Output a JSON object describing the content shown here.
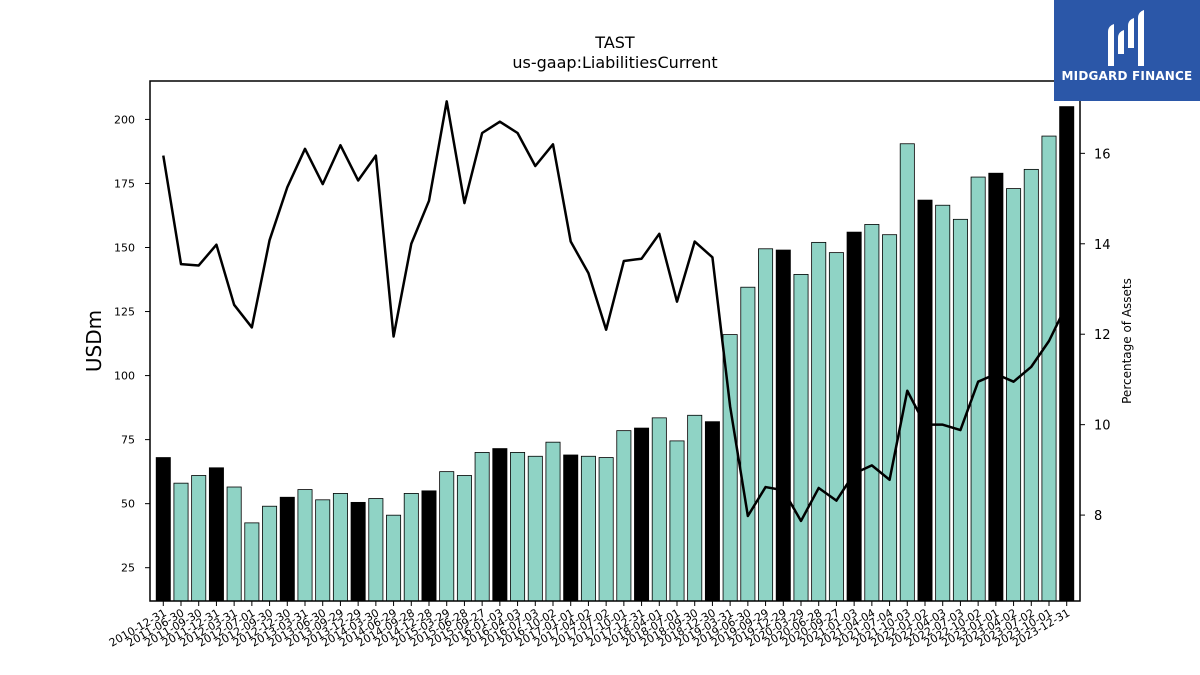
{
  "chart_data": {
    "type": "bar",
    "title": "TAST",
    "subtitle": "us-gaap:LiabilitiesCurrent",
    "ylabel": "USDm",
    "y2label": "Percentage of Assets",
    "ylim": [
      12,
      215
    ],
    "y2lim": [
      6.1,
      17.6
    ],
    "yticks": [
      25,
      50,
      75,
      100,
      125,
      150,
      175,
      200
    ],
    "y2ticks": [
      8,
      10,
      12,
      14,
      16
    ],
    "bar_colors": {
      "annual": "#000000",
      "quarter": "#8fd3c5"
    },
    "line_color": "#000000",
    "grid": false,
    "categories": [
      "2010-12-31",
      "2011-06-30",
      "2011-09-30",
      "2011-12-31",
      "2012-03-31",
      "2012-07-01",
      "2012-09-30",
      "2012-12-30",
      "2013-03-31",
      "2013-06-30",
      "2013-09-29",
      "2013-12-29",
      "2014-03-30",
      "2014-06-29",
      "2014-09-28",
      "2014-12-28",
      "2015-03-29",
      "2015-06-28",
      "2015-09-27",
      "2016-01-03",
      "2016-04-03",
      "2016-07-03",
      "2016-10-02",
      "2017-01-01",
      "2017-04-02",
      "2017-07-02",
      "2017-10-01",
      "2017-12-31",
      "2018-04-01",
      "2018-07-01",
      "2018-09-30",
      "2018-12-30",
      "2019-03-31",
      "2019-06-30",
      "2019-09-29",
      "2019-12-29",
      "2020-03-29",
      "2020-06-28",
      "2020-09-27",
      "2021-01-03",
      "2021-04-04",
      "2021-07-04",
      "2021-10-03",
      "2022-01-02",
      "2022-04-03",
      "2022-07-03",
      "2022-10-02",
      "2023-01-01",
      "2023-04-02",
      "2023-07-02",
      "2023-10-01",
      "2023-12-31"
    ],
    "values": [
      68,
      58,
      61,
      64,
      56.5,
      42.5,
      49,
      52.5,
      55.5,
      51.5,
      54,
      50.5,
      52,
      45.5,
      54,
      55,
      62.5,
      61,
      70,
      71.5,
      70,
      68.5,
      74,
      69,
      68.5,
      68,
      78.5,
      79.5,
      83.5,
      74.5,
      84.5,
      82,
      116,
      134.5,
      149.5,
      149,
      139.5,
      152,
      148,
      156,
      159,
      155,
      190.5,
      168.5,
      166.5,
      161,
      177.5,
      179,
      173,
      180.5,
      193.5,
      205
    ],
    "annual": [
      true,
      false,
      false,
      true,
      false,
      false,
      false,
      true,
      false,
      false,
      false,
      true,
      false,
      false,
      false,
      true,
      false,
      false,
      false,
      true,
      false,
      false,
      false,
      true,
      false,
      false,
      false,
      true,
      false,
      false,
      false,
      true,
      false,
      false,
      false,
      true,
      false,
      false,
      false,
      true,
      false,
      false,
      false,
      true,
      false,
      false,
      false,
      true,
      false,
      false,
      false,
      true
    ],
    "pct_of_assets": [
      15.95,
      13.55,
      13.52,
      13.98,
      12.65,
      12.15,
      14.08,
      15.25,
      16.1,
      15.32,
      16.18,
      15.4,
      15.95,
      11.95,
      14,
      14.95,
      17.15,
      14.9,
      16.45,
      16.7,
      16.45,
      15.72,
      16.2,
      14.05,
      13.35,
      12.1,
      13.62,
      13.67,
      14.22,
      12.72,
      14.05,
      13.7,
      10.4,
      7.98,
      8.62,
      8.55,
      7.87,
      8.6,
      8.32,
      8.92,
      9.1,
      8.78,
      10.75,
      10,
      10,
      9.88,
      10.95,
      11.12,
      10.95,
      11.28,
      11.85,
      12.65
    ]
  },
  "logo": {
    "text": "MIDGARD FINANCE"
  }
}
